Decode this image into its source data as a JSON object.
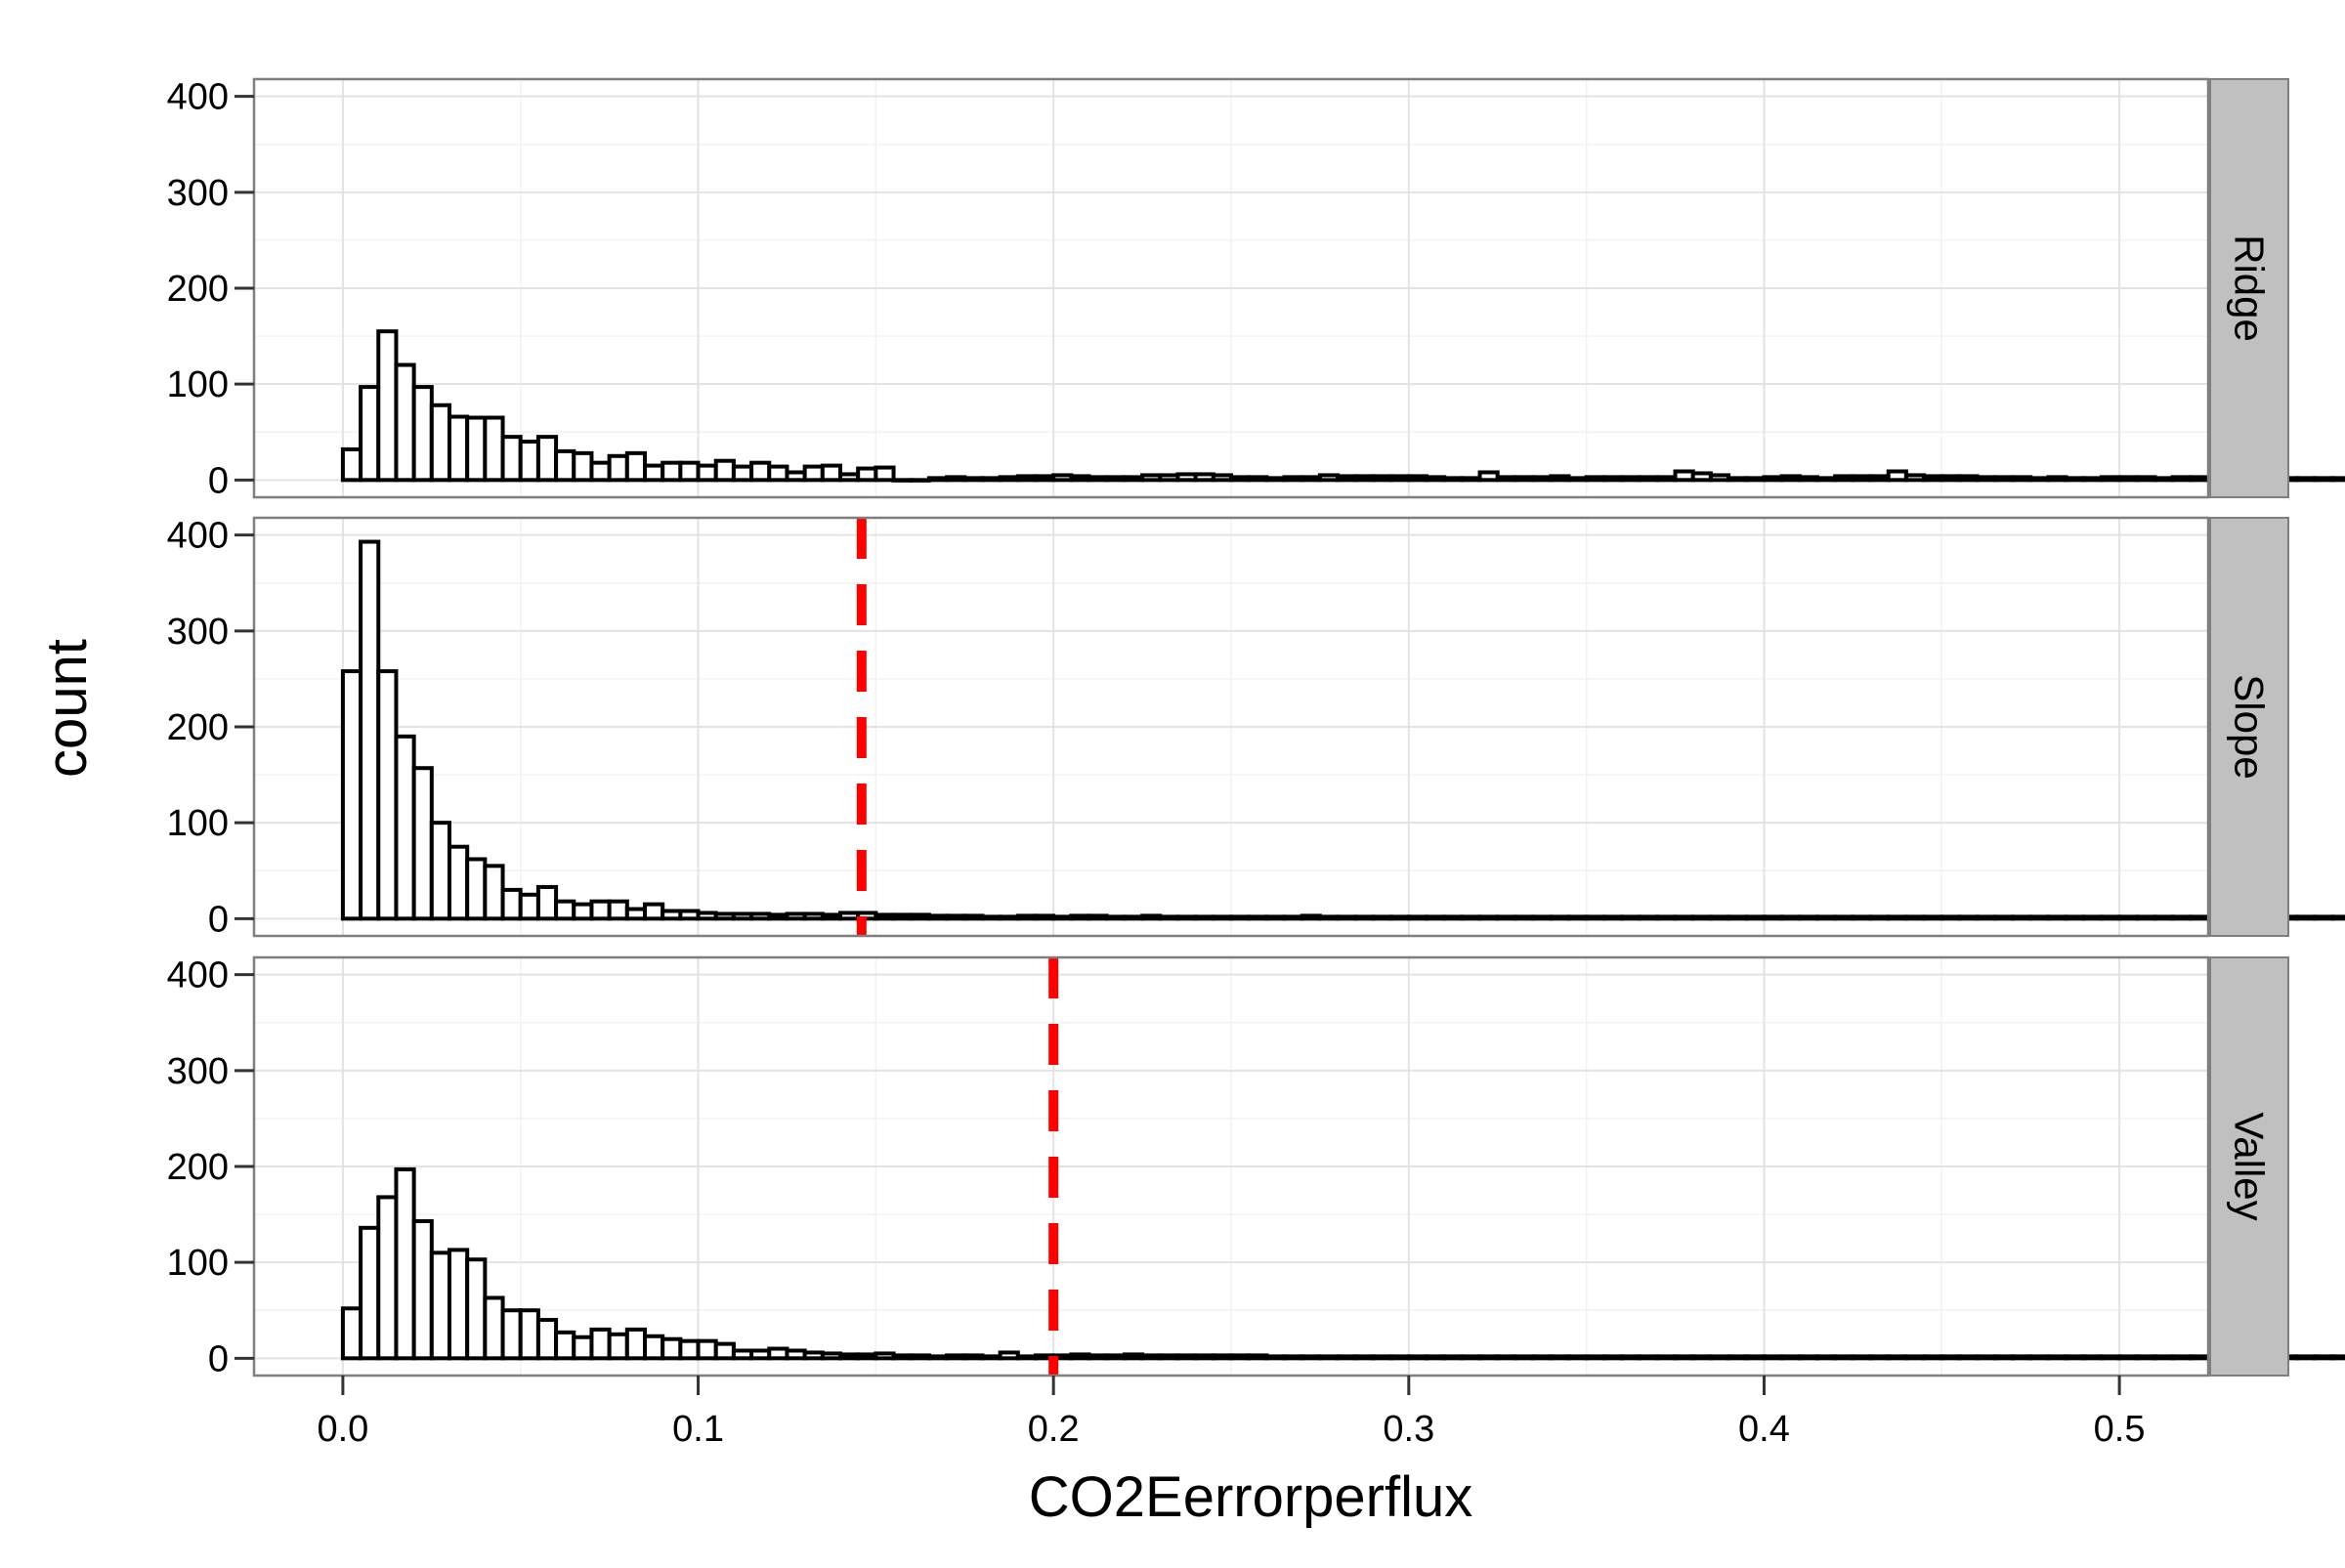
{
  "chart_data": {
    "type": "bar",
    "subtype": "faceted-histogram",
    "xlabel": "CO2Eerrorperflux",
    "ylabel": "count",
    "xlim": [
      -0.025,
      0.525
    ],
    "ylim": [
      -18,
      418
    ],
    "x_ticks": [
      0.0,
      0.1,
      0.2,
      0.3,
      0.4,
      0.5
    ],
    "x_tick_labels": [
      "0.0",
      "0.1",
      "0.2",
      "0.3",
      "0.4",
      "0.5"
    ],
    "y_ticks": [
      0,
      100,
      200,
      300,
      400
    ],
    "y_tick_labels": [
      "0",
      "100",
      "200",
      "300",
      "400"
    ],
    "grid": true,
    "bin_start": 0.0,
    "bin_width": 0.005,
    "colors": {
      "bar_fill": "#ffffff",
      "bar_outline": "#000000",
      "panel_background": "#ffffff",
      "grid_major": "#e3e3e3",
      "grid_minor": "#f2f2f2",
      "strip_background": "#c0c0c0",
      "panel_border": "#7f7f7f",
      "reference_line": "#ff0000"
    },
    "panels": [
      {
        "name": "Ridge",
        "strip_label": "Ridge",
        "reference_line": null,
        "values": [
          32,
          97,
          155,
          120,
          97,
          78,
          66,
          65,
          65,
          45,
          40,
          45,
          30,
          28,
          18,
          25,
          28,
          15,
          18,
          18,
          15,
          20,
          14,
          18,
          14,
          8,
          14,
          15,
          6,
          12,
          13,
          0,
          0,
          2,
          3,
          2,
          2,
          3,
          4,
          4,
          5,
          4,
          3,
          3,
          3,
          5,
          5,
          6,
          6,
          5,
          3,
          3,
          2,
          3,
          3,
          5,
          4,
          4,
          4,
          4,
          4,
          3,
          2,
          2,
          8,
          3,
          3,
          3,
          4,
          2,
          3,
          3,
          3,
          3,
          3,
          9,
          7,
          5,
          2,
          2,
          3,
          4,
          3,
          2,
          4,
          4,
          4,
          9,
          5,
          4,
          4,
          4,
          3,
          3,
          3,
          2,
          3,
          2,
          2,
          3,
          3,
          3,
          2,
          3,
          3,
          2,
          2,
          4,
          3,
          2,
          2,
          2,
          2,
          3,
          3,
          2,
          2,
          2,
          3,
          3
        ]
      },
      {
        "name": "Slope",
        "strip_label": "Slope",
        "reference_line": 0.146,
        "values": [
          258,
          393,
          258,
          190,
          157,
          100,
          75,
          62,
          55,
          30,
          25,
          33,
          18,
          15,
          18,
          18,
          10,
          15,
          8,
          8,
          6,
          5,
          5,
          5,
          4,
          5,
          5,
          4,
          6,
          6,
          4,
          4,
          4,
          3,
          3,
          3,
          2,
          2,
          3,
          3,
          2,
          3,
          3,
          2,
          2,
          3,
          2,
          2,
          2,
          2,
          2,
          2,
          2,
          2,
          3,
          2,
          2,
          2,
          2,
          2,
          2,
          2,
          2,
          2,
          2,
          2,
          2,
          2,
          2,
          2,
          2,
          2,
          2,
          2,
          2,
          2,
          2,
          2,
          2,
          2,
          2,
          2,
          2,
          2,
          2,
          2,
          2,
          2,
          2,
          2,
          2,
          2,
          2,
          2,
          2,
          2,
          2,
          2,
          2,
          2,
          2,
          2,
          2,
          2,
          2,
          2,
          2,
          2,
          2,
          2,
          2,
          2,
          2,
          2,
          2,
          2,
          2,
          2,
          2,
          2
        ]
      },
      {
        "name": "Valley",
        "strip_label": "Valley",
        "reference_line": 0.2,
        "values": [
          52,
          136,
          168,
          197,
          143,
          110,
          113,
          103,
          63,
          50,
          50,
          40,
          27,
          22,
          30,
          25,
          30,
          23,
          20,
          18,
          18,
          15,
          8,
          8,
          10,
          8,
          6,
          5,
          4,
          4,
          5,
          3,
          3,
          2,
          3,
          3,
          2,
          6,
          2,
          3,
          3,
          4,
          3,
          3,
          4,
          3,
          3,
          3,
          3,
          3,
          3,
          3,
          2,
          2,
          2,
          2,
          2,
          2,
          2,
          2,
          2,
          2,
          2,
          2,
          2,
          2,
          2,
          2,
          2,
          2,
          2,
          2,
          2,
          2,
          2,
          2,
          2,
          2,
          2,
          2,
          2,
          2,
          2,
          2,
          2,
          2,
          2,
          2,
          2,
          2,
          2,
          2,
          2,
          2,
          2,
          2,
          2,
          2,
          2,
          2,
          2,
          2,
          2,
          2,
          2,
          2,
          2,
          2,
          2,
          2,
          2,
          2,
          2,
          2,
          2,
          2,
          2,
          2,
          2,
          2
        ]
      }
    ]
  }
}
